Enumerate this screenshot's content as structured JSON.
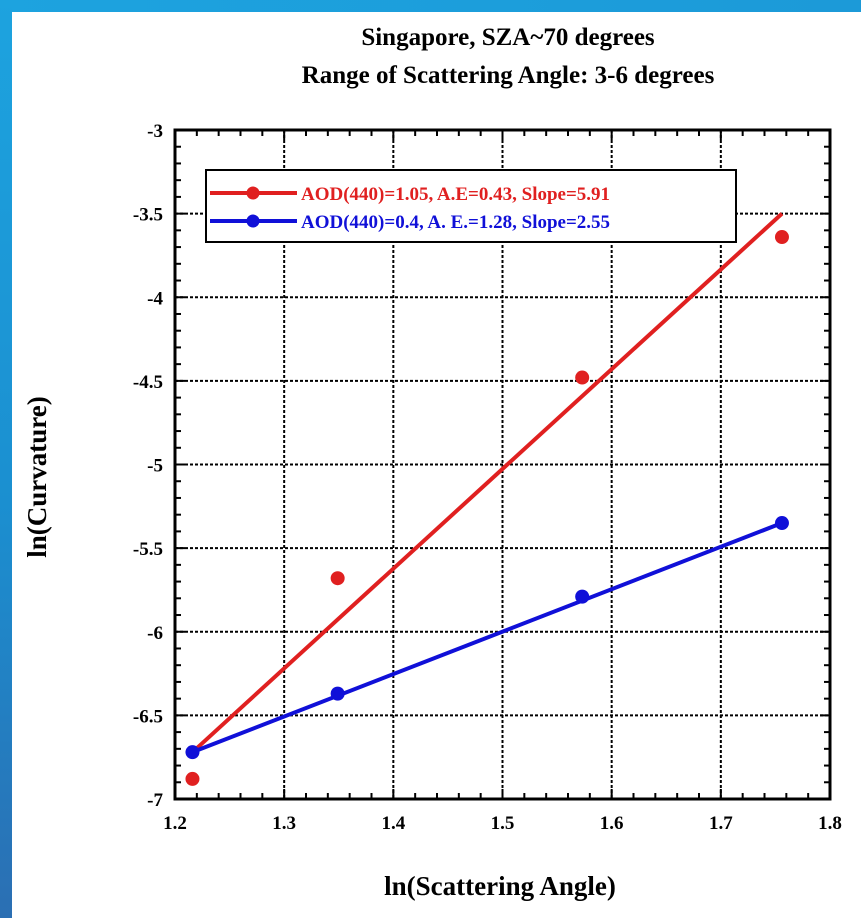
{
  "chart_data": {
    "type": "scatter",
    "title_lines": [
      "Singapore, SZA~70 degrees",
      "Range of Scattering Angle: 3-6 degrees"
    ],
    "xlabel": "ln(Scattering Angle)",
    "ylabel": "ln(Curvature)",
    "xlim": [
      1.2,
      1.8
    ],
    "ylim": [
      -7,
      -3
    ],
    "x_ticks": [
      "1.2",
      "1.3",
      "1.4",
      "1.5",
      "1.6",
      "1.7",
      "1.8"
    ],
    "y_ticks": [
      "-3",
      "-3.5",
      "-4",
      "-4.5",
      "-5",
      "-5.5",
      "-6",
      "-6.5",
      "-7"
    ],
    "grid": true,
    "legend_position": "top-left",
    "series": [
      {
        "name": "AOD(440)=1.05, A.E=0.43, Slope=5.91",
        "color": "#e02020",
        "points": [
          [
            1.216,
            -6.88
          ],
          [
            1.349,
            -5.68
          ],
          [
            1.573,
            -4.48
          ],
          [
            1.756,
            -3.64
          ]
        ],
        "fit_line": [
          [
            1.216,
            -6.72
          ],
          [
            1.756,
            -3.5
          ]
        ]
      },
      {
        "name": "AOD(440)=0.4, A. E.=1.28, Slope=2.55",
        "color": "#1010d8",
        "points": [
          [
            1.216,
            -6.72
          ],
          [
            1.349,
            -6.37
          ],
          [
            1.573,
            -5.79
          ],
          [
            1.756,
            -5.35
          ]
        ],
        "fit_line": [
          [
            1.216,
            -6.72
          ],
          [
            1.756,
            -5.35
          ]
        ]
      }
    ]
  }
}
